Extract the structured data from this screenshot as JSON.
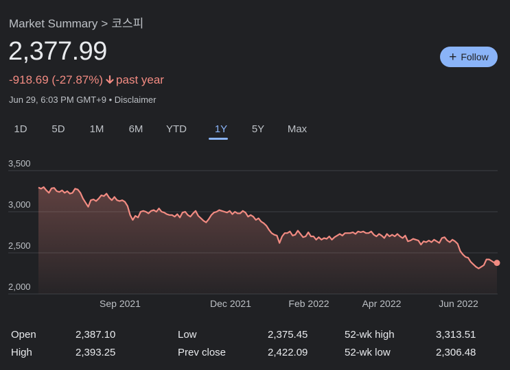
{
  "breadcrumb": {
    "parent": "Market Summary",
    "separator": ">",
    "current": "코스피"
  },
  "quote": {
    "price": "2,377.99",
    "change": "-918.69 (-27.87%)",
    "period": "past year",
    "timestamp": "Jun 29, 6:03 PM GMT+9",
    "disclaimer": "Disclaimer",
    "meta_separator": "•"
  },
  "follow": {
    "label": "Follow"
  },
  "range_tabs": [
    {
      "label": "1D",
      "active": false
    },
    {
      "label": "5D",
      "active": false
    },
    {
      "label": "1M",
      "active": false
    },
    {
      "label": "6M",
      "active": false
    },
    {
      "label": "YTD",
      "active": false
    },
    {
      "label": "1Y",
      "active": true
    },
    {
      "label": "5Y",
      "active": false
    },
    {
      "label": "Max",
      "active": false
    }
  ],
  "chart_data": {
    "type": "area",
    "y_ticks": [
      "3,500",
      "3,000",
      "2,500",
      "2,000"
    ],
    "y_tick_values": [
      3500,
      3000,
      2500,
      2000
    ],
    "ylim": [
      2000,
      3500
    ],
    "x_ticks": [
      "Sep 2021",
      "Dec 2021",
      "Feb 2022",
      "Apr 2022",
      "Jun 2022"
    ],
    "grid": true,
    "colors": {
      "line": "#f28b82",
      "grid": "#3c4043",
      "text": "#bdc1c6"
    },
    "values": [
      3295,
      3280,
      3300,
      3260,
      3230,
      3285,
      3290,
      3250,
      3240,
      3260,
      3230,
      3250,
      3220,
      3230,
      3280,
      3270,
      3230,
      3160,
      3110,
      3060,
      3140,
      3150,
      3130,
      3160,
      3200,
      3190,
      3220,
      3170,
      3140,
      3180,
      3140,
      3130,
      3140,
      3120,
      3070,
      2960,
      2900,
      2950,
      2930,
      3000,
      3010,
      3000,
      2980,
      3010,
      3020,
      3000,
      3040,
      3000,
      2990,
      2970,
      2960,
      2960,
      2940,
      2970,
      2930,
      2990,
      3000,
      2960,
      2940,
      2980,
      3010,
      2950,
      2920,
      2890,
      2870,
      2910,
      2960,
      2990,
      3000,
      3020,
      3010,
      3000,
      2990,
      3010,
      2970,
      3000,
      2980,
      2980,
      3010,
      2990,
      2940,
      2960,
      2940,
      2900,
      2920,
      2880,
      2860,
      2830,
      2780,
      2740,
      2720,
      2710,
      2620,
      2700,
      2740,
      2740,
      2760,
      2710,
      2720,
      2770,
      2730,
      2690,
      2700,
      2750,
      2700,
      2700,
      2660,
      2690,
      2660,
      2680,
      2670,
      2700,
      2660,
      2690,
      2710,
      2730,
      2710,
      2740,
      2740,
      2740,
      2750,
      2730,
      2760,
      2750,
      2760,
      2740,
      2740,
      2760,
      2720,
      2700,
      2730,
      2710,
      2680,
      2730,
      2700,
      2720,
      2700,
      2730,
      2700,
      2680,
      2710,
      2640,
      2650,
      2670,
      2660,
      2650,
      2600,
      2640,
      2630,
      2650,
      2630,
      2660,
      2640,
      2620,
      2680,
      2690,
      2650,
      2630,
      2660,
      2640,
      2610,
      2520,
      2480,
      2450,
      2440,
      2390,
      2360,
      2330,
      2310,
      2330,
      2350,
      2420,
      2420,
      2400,
      2380,
      2377.99
    ]
  },
  "stats": [
    {
      "label": "Open",
      "value": "2,387.10"
    },
    {
      "label": "High",
      "value": "2,393.25"
    },
    {
      "label": "Low",
      "value": "2,375.45"
    },
    {
      "label": "Prev close",
      "value": "2,422.09"
    },
    {
      "label": "52-wk high",
      "value": "3,313.51"
    },
    {
      "label": "52-wk low",
      "value": "2,306.48"
    }
  ]
}
